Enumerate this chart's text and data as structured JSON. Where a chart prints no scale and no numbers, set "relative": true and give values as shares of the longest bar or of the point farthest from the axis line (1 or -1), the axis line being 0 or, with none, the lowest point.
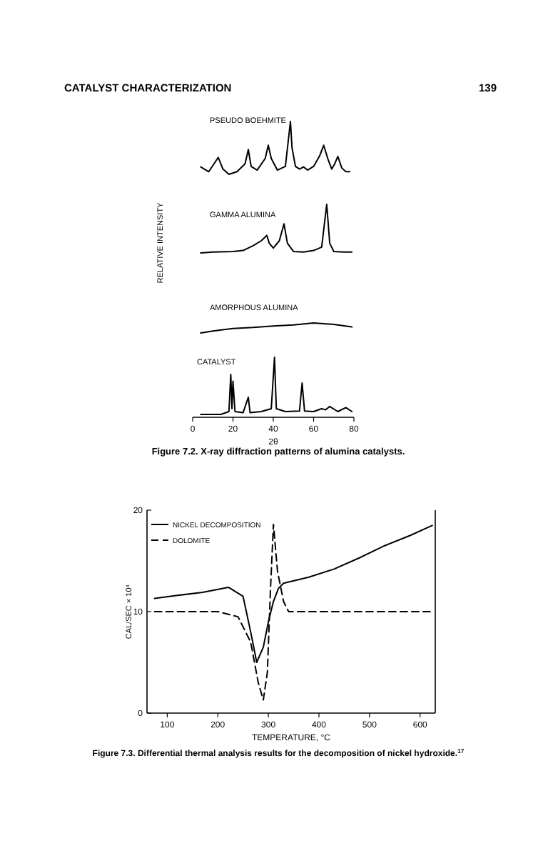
{
  "chart_data": [
    {
      "type": "line",
      "title": "PSEUDO BOEHMITE",
      "relative": true,
      "xlim": [
        0,
        80
      ],
      "tick_labels": false,
      "annotations": [
        "CATALYST CHARACTERIZATION",
        "139"
      ],
      "series": [
        {
          "color": "#000000",
          "x": [
            4,
            8,
            12.7,
            15,
            18,
            22,
            26,
            27.6,
            29,
            32,
            36,
            37.5,
            39,
            42,
            46,
            48.5,
            49.3,
            51,
            53,
            55,
            57,
            60,
            63,
            65,
            67,
            69,
            70.5,
            72,
            74,
            76,
            78
          ],
          "values": [
            0.14,
            0.05,
            0.32,
            0.1,
            0,
            0.05,
            0.2,
            0.47,
            0.15,
            0.08,
            0.3,
            0.55,
            0.3,
            0.08,
            0.15,
            1,
            0.5,
            0.15,
            0.1,
            0.14,
            0.08,
            0.15,
            0.35,
            0.55,
            0.3,
            0.1,
            0.2,
            0.34,
            0.12,
            0.05,
            0.05
          ]
        }
      ]
    },
    {
      "type": "line",
      "title": "GAMMA ALUMINA",
      "ylabel": "RELATIVE INTENSITY",
      "relative": true,
      "xlim": [
        0,
        80
      ],
      "tick_labels": false,
      "series": [
        {
          "color": "#000000",
          "x": [
            4,
            10,
            20,
            25,
            30,
            34,
            36.8,
            38,
            40,
            43,
            45.3,
            47,
            50,
            55,
            60,
            64,
            66.5,
            68,
            70,
            75,
            79
          ],
          "values": [
            0,
            0.02,
            0.03,
            0.05,
            0.15,
            0.25,
            0.36,
            0.2,
            0.1,
            0.25,
            0.6,
            0.2,
            0.03,
            0.02,
            0.05,
            0.12,
            1,
            0.2,
            0.03,
            0.02,
            0.02
          ]
        }
      ]
    },
    {
      "type": "line",
      "title": "AMORPHOUS ALUMINA",
      "relative": true,
      "xlim": [
        0,
        80
      ],
      "tick_labels": false,
      "series": [
        {
          "color": "#000000",
          "x": [
            4,
            10,
            20,
            30,
            40,
            50,
            60,
            70,
            79
          ],
          "values": [
            0,
            0.2,
            0.45,
            0.55,
            0.7,
            0.8,
            1,
            0.85,
            0.6
          ]
        }
      ]
    },
    {
      "type": "line",
      "title": "CATALYST",
      "xlabel": "2θ",
      "relative": true,
      "xlim": [
        0,
        80
      ],
      "xticks": [
        0,
        20,
        40,
        60,
        80
      ],
      "tick_labels": "x",
      "annotations": [
        "Figure 7.2. X-ray diffraction patterns of alumina catalysts."
      ],
      "series": [
        {
          "color": "#000000",
          "x": [
            4,
            14,
            18,
            18.9,
            19.5,
            20,
            21,
            25,
            27.6,
            28.5,
            34,
            39,
            40.6,
            41.5,
            46,
            53,
            54.3,
            55.5,
            60,
            64,
            66,
            68,
            72,
            76,
            79
          ],
          "values": [
            0,
            0,
            0.05,
            0.7,
            0.1,
            0.58,
            0.05,
            0.03,
            0.3,
            0.03,
            0.05,
            0.1,
            1,
            0.1,
            0.05,
            0.06,
            0.55,
            0.06,
            0.05,
            0.1,
            0.08,
            0.14,
            0.05,
            0.12,
            0.05
          ]
        }
      ]
    },
    {
      "type": "line",
      "xlabel": "TEMPERATURE, °C",
      "ylabel": "CAL/SEC × 10⁴",
      "xlim": [
        60,
        630
      ],
      "ylim": [
        0,
        20
      ],
      "xticks": [
        100,
        200,
        300,
        400,
        500,
        600
      ],
      "yticks": [
        0,
        10,
        20
      ],
      "legend": "top left",
      "annotations": [
        "Figure 7.3. Differential thermal analysis results for the decomposition of nickel hydroxide.$^{17}$"
      ],
      "series": [
        {
          "name": "NICKEL DECOMPOSITION",
          "color": "#000000",
          "line_style": "solid",
          "x": [
            75,
            120,
            170,
            221,
            250,
            265,
            277,
            290,
            300,
            310,
            320,
            330,
            380,
            430,
            480,
            530,
            580,
            624
          ],
          "values": [
            11.3,
            11.6,
            11.9,
            12.4,
            11.5,
            8,
            5,
            6.5,
            9,
            11,
            12.3,
            12.8,
            13.4,
            14.2,
            15.3,
            16.5,
            17.5,
            18.5
          ]
        },
        {
          "name": "DOLOMITE",
          "color": "#000000",
          "line_style": "dashed",
          "x": [
            75,
            150,
            200,
            240,
            265,
            280,
            290,
            298,
            304,
            310,
            318,
            330,
            340,
            400,
            500,
            620
          ],
          "values": [
            10,
            10,
            10,
            9.5,
            7,
            3,
            1.3,
            4,
            12,
            18.6,
            14,
            11,
            10,
            10,
            10,
            10
          ]
        }
      ]
    }
  ]
}
